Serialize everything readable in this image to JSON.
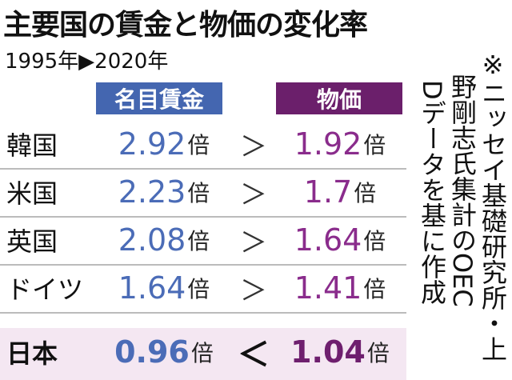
{
  "title": "主要国の賃金と物価の変化率",
  "subtitle": "1995年▶2020年",
  "headers": {
    "wage": "名目賃金",
    "price": "物価"
  },
  "unit": "倍",
  "rows": [
    {
      "country": "韓国",
      "wage": "2.92",
      "comparison": "＞",
      "price": "1.92"
    },
    {
      "country": "米国",
      "wage": "2.23",
      "comparison": "＞",
      "price": "1.7"
    },
    {
      "country": "英国",
      "wage": "2.08",
      "comparison": "＞",
      "price": "1.64"
    },
    {
      "country": "ドイツ",
      "wage": "1.64",
      "comparison": "＞",
      "price": "1.41"
    },
    {
      "country": "日本",
      "wage": "0.96",
      "comparison": "＜",
      "price": "1.04"
    }
  ],
  "note": [
    "※ニッセイ基礎研究所・上",
    "野剛志氏集計のOEC",
    "Dデータを基に作成"
  ]
}
